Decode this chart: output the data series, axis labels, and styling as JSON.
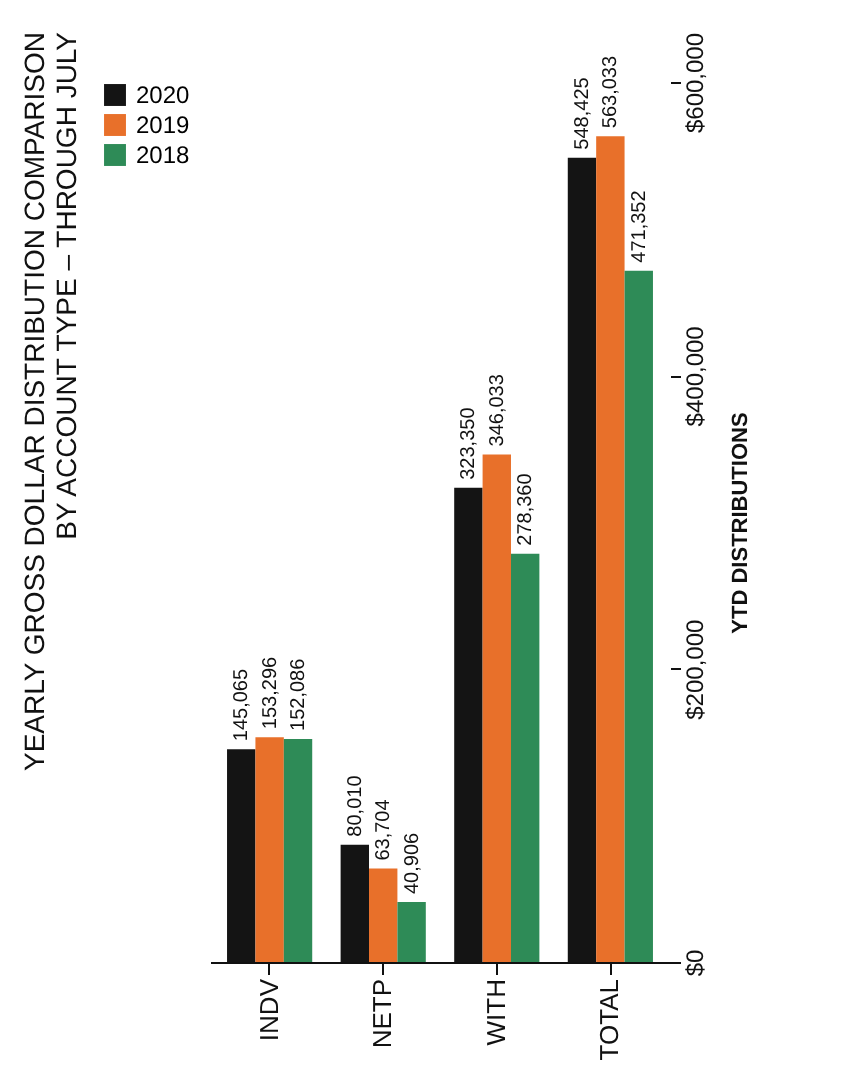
{
  "chart_data": {
    "type": "bar",
    "title": "YEARLY GROSS DOLLAR DISTRIBUTION COMPARISON\nBY ACCOUNT TYPE – THROUGH JULY",
    "ylabel": "YTD DISTRIBUTIONS",
    "categories": [
      "INDV",
      "NETP",
      "WITH",
      "TOTAL"
    ],
    "series": [
      {
        "name": "2020",
        "color": "#141414",
        "values": [
          145065,
          80010,
          323350,
          548425
        ],
        "value_labels": [
          "145,065",
          "80,010",
          "323,350",
          "548,425"
        ]
      },
      {
        "name": "2019",
        "color": "#e8702a",
        "values": [
          153296,
          63704,
          346033,
          563033
        ],
        "value_labels": [
          "153,296",
          "63,704",
          "346,033",
          "563,033"
        ]
      },
      {
        "name": "2018",
        "color": "#2e8b57",
        "values": [
          152086,
          40906,
          278360,
          471352
        ],
        "value_labels": [
          "152,086",
          "40,906",
          "278,360",
          "471,352"
        ]
      }
    ],
    "ylim": [
      0,
      600000
    ],
    "yticks": [
      {
        "value": 0,
        "label": "$0"
      },
      {
        "value": 200000,
        "label": "$200,000"
      },
      {
        "value": 400000,
        "label": "$400,000"
      },
      {
        "value": 600000,
        "label": "$600,000"
      }
    ],
    "grid": false,
    "legend": "left"
  }
}
